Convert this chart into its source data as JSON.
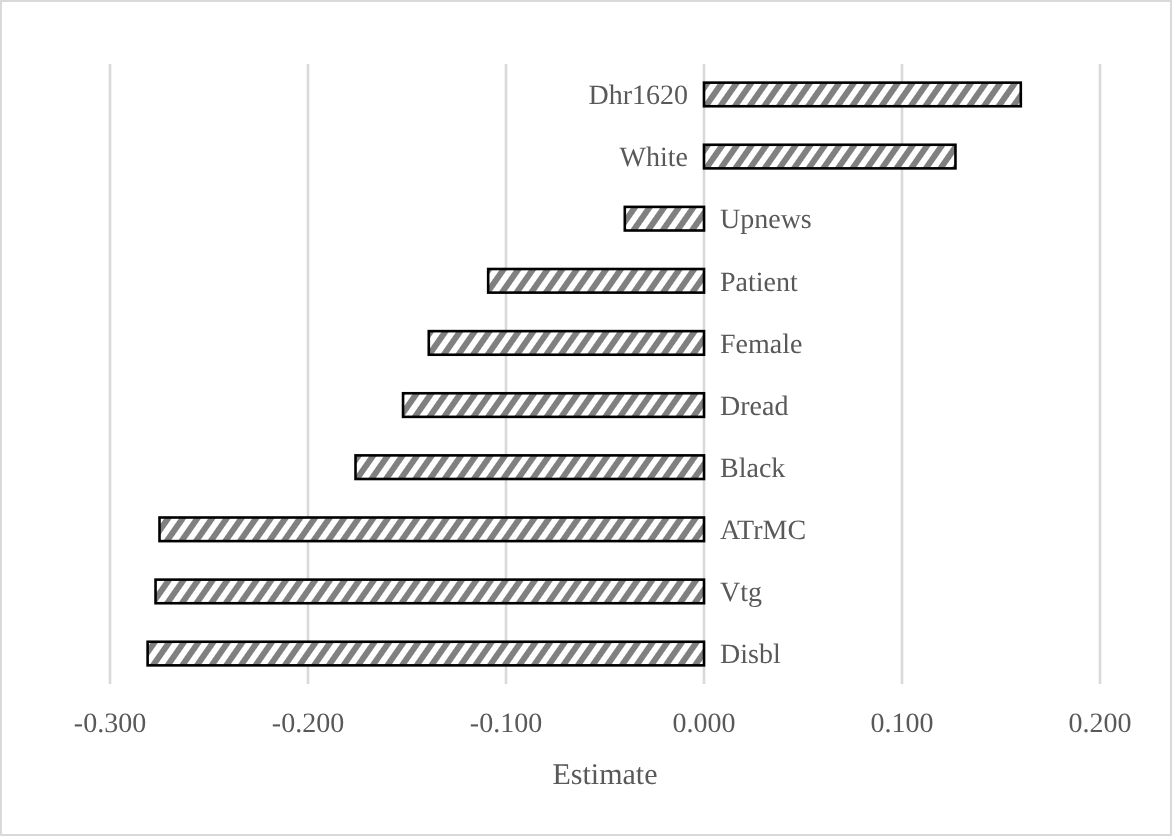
{
  "chart_data": {
    "type": "bar",
    "orientation": "horizontal",
    "xlabel": "Estimate",
    "categories": [
      "Dhr1620",
      "White",
      "Upnews",
      "Patient",
      "Female",
      "Dread",
      "Black",
      "ATrMC",
      "Vtg",
      "Disbl"
    ],
    "values": [
      0.16,
      0.127,
      -0.04,
      -0.109,
      -0.139,
      -0.152,
      -0.176,
      -0.275,
      -0.277,
      -0.281
    ],
    "color": "#000000",
    "xlim": [
      -0.3,
      0.2
    ],
    "xticks": [
      {
        "value": -0.3,
        "label": "-0.300"
      },
      {
        "value": -0.2,
        "label": "-0.200"
      },
      {
        "value": -0.1,
        "label": "-0.100"
      },
      {
        "value": 0,
        "label": "0.000"
      },
      {
        "value": 0.1,
        "label": "0.100"
      },
      {
        "value": 0.2,
        "label": "0.200"
      }
    ],
    "grid": "x"
  }
}
